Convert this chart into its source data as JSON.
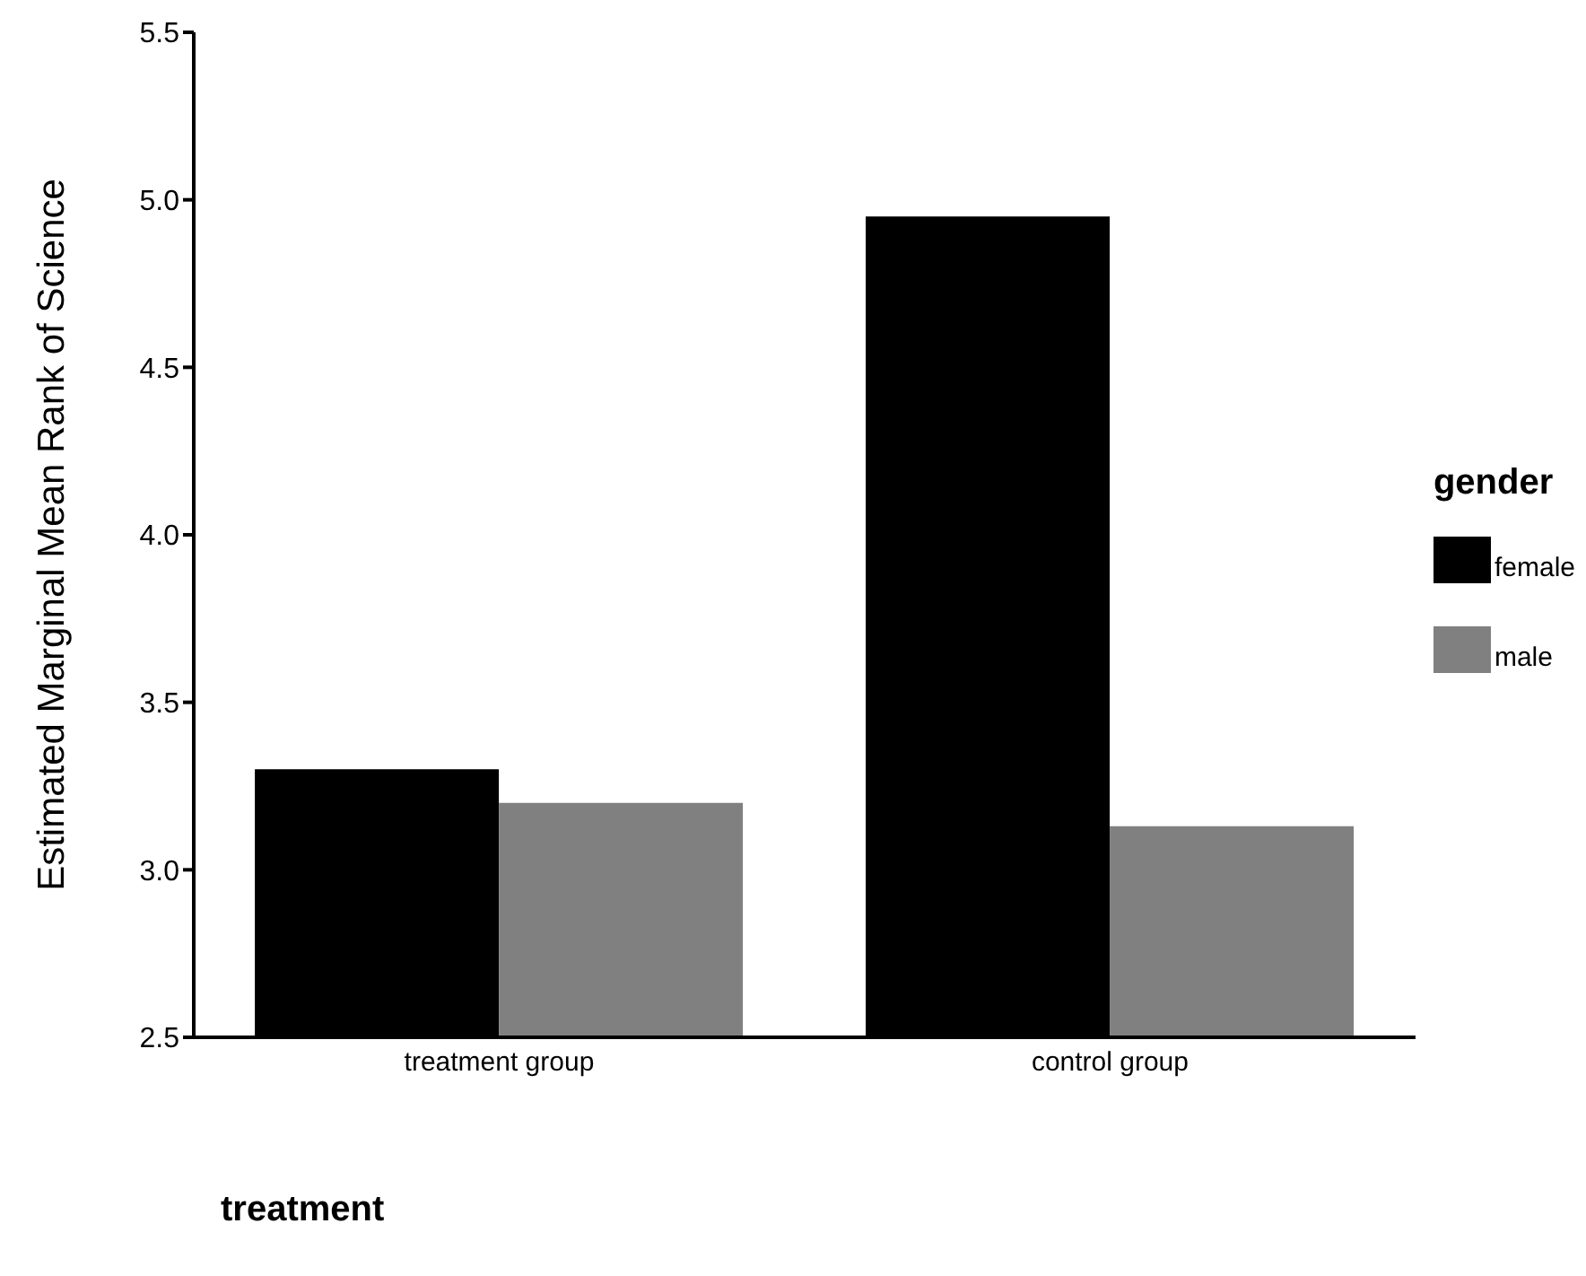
{
  "chart_data": {
    "type": "bar",
    "xlabel": "treatment",
    "ylabel": "Estimated Marginal Mean Rank of Science",
    "legend_title": "gender",
    "categories": [
      "treatment group",
      "control group"
    ],
    "series": [
      {
        "name": "female",
        "color": "#000000",
        "values": [
          3.3,
          4.95
        ]
      },
      {
        "name": "male",
        "color": "#808080",
        "values": [
          3.2,
          3.13
        ]
      }
    ],
    "ylim": [
      2.5,
      5.5
    ],
    "yticks": [
      {
        "value": 2.5,
        "label": "2.5"
      },
      {
        "value": 3,
        "label": "3.0"
      },
      {
        "value": 3.5,
        "label": "3.5"
      },
      {
        "value": 4,
        "label": "4.0"
      },
      {
        "value": 4.5,
        "label": "4.5"
      },
      {
        "value": 5,
        "label": "5.0"
      },
      {
        "value": 5.5,
        "label": "5.5"
      }
    ],
    "grid": false,
    "legend": "right"
  }
}
